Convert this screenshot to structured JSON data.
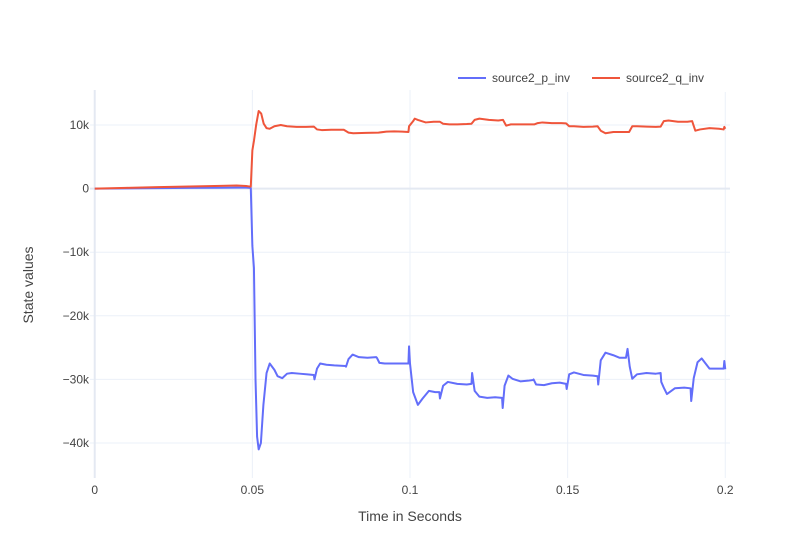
{
  "chart_data": {
    "type": "line",
    "xlabel": "Time in Seconds",
    "ylabel": "State values",
    "xlim": [
      -0.0015,
      0.2015
    ],
    "ylim": [
      -45500,
      15500
    ],
    "x_ticks": [
      0,
      0.05,
      0.1,
      0.15,
      0.2
    ],
    "x_tick_labels": [
      "0",
      "0.05",
      "0.1",
      "0.15",
      "0.2"
    ],
    "y_ticks": [
      10000,
      0,
      -10000,
      -20000,
      -30000,
      -40000
    ],
    "y_tick_labels": [
      "10k",
      "0",
      "−10k",
      "−20k",
      "−30k",
      "−40k"
    ],
    "grid": true,
    "legend_position": "top-right",
    "series": [
      {
        "name": "source2_p_inv",
        "color": "#636efa",
        "points": [
          [
            0,
            0
          ],
          [
            0.01,
            40
          ],
          [
            0.02,
            80
          ],
          [
            0.03,
            120
          ],
          [
            0.04,
            140
          ],
          [
            0.045,
            160
          ],
          [
            0.048,
            150
          ],
          [
            0.0495,
            120
          ],
          [
            0.05,
            -9000
          ],
          [
            0.0505,
            -12500
          ],
          [
            0.051,
            -30000
          ],
          [
            0.0515,
            -39000
          ],
          [
            0.052,
            -41000
          ],
          [
            0.0527,
            -40000
          ],
          [
            0.0535,
            -34000
          ],
          [
            0.0545,
            -29000
          ],
          [
            0.0555,
            -27500
          ],
          [
            0.057,
            -28500
          ],
          [
            0.058,
            -29500
          ],
          [
            0.0595,
            -29800
          ],
          [
            0.061,
            -29100
          ],
          [
            0.0625,
            -29000
          ],
          [
            0.065,
            -29100
          ],
          [
            0.0675,
            -29200
          ],
          [
            0.0695,
            -29300
          ],
          [
            0.0697,
            -30000
          ],
          [
            0.0705,
            -28300
          ],
          [
            0.0715,
            -27500
          ],
          [
            0.0735,
            -27700
          ],
          [
            0.076,
            -27800
          ],
          [
            0.0795,
            -27900
          ],
          [
            0.0797,
            -28000
          ],
          [
            0.0805,
            -26800
          ],
          [
            0.0818,
            -26100
          ],
          [
            0.0838,
            -26500
          ],
          [
            0.0865,
            -26600
          ],
          [
            0.0893,
            -26500
          ],
          [
            0.0895,
            -26600
          ],
          [
            0.0903,
            -27400
          ],
          [
            0.092,
            -27500
          ],
          [
            0.095,
            -27500
          ],
          [
            0.0975,
            -27500
          ],
          [
            0.0995,
            -27500
          ],
          [
            0.0997,
            -24800
          ],
          [
            0.1,
            -27500
          ],
          [
            0.101,
            -32000
          ],
          [
            0.1025,
            -34000
          ],
          [
            0.104,
            -33000
          ],
          [
            0.106,
            -31800
          ],
          [
            0.108,
            -32000
          ],
          [
            0.1093,
            -32000
          ],
          [
            0.1095,
            -33000
          ],
          [
            0.1105,
            -31000
          ],
          [
            0.112,
            -30400
          ],
          [
            0.115,
            -30700
          ],
          [
            0.118,
            -30800
          ],
          [
            0.1195,
            -30700
          ],
          [
            0.1197,
            -29000
          ],
          [
            0.1205,
            -31800
          ],
          [
            0.122,
            -32700
          ],
          [
            0.1245,
            -32900
          ],
          [
            0.127,
            -32800
          ],
          [
            0.1292,
            -32900
          ],
          [
            0.1294,
            -34500
          ],
          [
            0.13,
            -31000
          ],
          [
            0.1312,
            -29400
          ],
          [
            0.1325,
            -29900
          ],
          [
            0.135,
            -30300
          ],
          [
            0.1375,
            -30200
          ],
          [
            0.139,
            -30100
          ],
          [
            0.1392,
            -30000
          ],
          [
            0.14,
            -30800
          ],
          [
            0.1425,
            -30900
          ],
          [
            0.145,
            -30600
          ],
          [
            0.1475,
            -30500
          ],
          [
            0.1495,
            -30700
          ],
          [
            0.1497,
            -31500
          ],
          [
            0.1505,
            -29200
          ],
          [
            0.152,
            -28900
          ],
          [
            0.155,
            -29300
          ],
          [
            0.158,
            -29400
          ],
          [
            0.1595,
            -29500
          ],
          [
            0.1597,
            -30800
          ],
          [
            0.1605,
            -27000
          ],
          [
            0.162,
            -25800
          ],
          [
            0.1645,
            -26200
          ],
          [
            0.1665,
            -26600
          ],
          [
            0.1685,
            -26600
          ],
          [
            0.169,
            -25200
          ],
          [
            0.1697,
            -28000
          ],
          [
            0.1705,
            -29900
          ],
          [
            0.172,
            -29200
          ],
          [
            0.175,
            -29000
          ],
          [
            0.178,
            -29100
          ],
          [
            0.1795,
            -29000
          ],
          [
            0.1797,
            -30400
          ],
          [
            0.1805,
            -31300
          ],
          [
            0.1815,
            -32300
          ],
          [
            0.184,
            -31400
          ],
          [
            0.187,
            -31300
          ],
          [
            0.189,
            -31400
          ],
          [
            0.1892,
            -33400
          ],
          [
            0.19,
            -29800
          ],
          [
            0.1912,
            -27300
          ],
          [
            0.1925,
            -26700
          ],
          [
            0.195,
            -28300
          ],
          [
            0.198,
            -28300
          ],
          [
            0.1995,
            -28300
          ],
          [
            0.1997,
            -27100
          ],
          [
            0.2,
            -28400
          ]
        ]
      },
      {
        "name": "source2_q_inv",
        "color": "#ef553b",
        "points": [
          [
            0,
            0
          ],
          [
            0.01,
            120
          ],
          [
            0.02,
            230
          ],
          [
            0.03,
            330
          ],
          [
            0.04,
            420
          ],
          [
            0.045,
            480
          ],
          [
            0.048,
            400
          ],
          [
            0.0495,
            300
          ],
          [
            0.05,
            6000
          ],
          [
            0.0505,
            7500
          ],
          [
            0.0512,
            10000
          ],
          [
            0.052,
            12200
          ],
          [
            0.0528,
            11800
          ],
          [
            0.0536,
            10200
          ],
          [
            0.0545,
            9500
          ],
          [
            0.0555,
            9400
          ],
          [
            0.057,
            9800
          ],
          [
            0.059,
            10000
          ],
          [
            0.061,
            9800
          ],
          [
            0.064,
            9700
          ],
          [
            0.067,
            9700
          ],
          [
            0.0695,
            9750
          ],
          [
            0.0705,
            9300
          ],
          [
            0.072,
            9200
          ],
          [
            0.075,
            9250
          ],
          [
            0.079,
            9250
          ],
          [
            0.0805,
            8800
          ],
          [
            0.082,
            8700
          ],
          [
            0.086,
            8750
          ],
          [
            0.09,
            8800
          ],
          [
            0.0925,
            8950
          ],
          [
            0.095,
            9000
          ],
          [
            0.0975,
            8950
          ],
          [
            0.0995,
            8900
          ],
          [
            0.0997,
            9800
          ],
          [
            0.101,
            10600
          ],
          [
            0.1015,
            11000
          ],
          [
            0.1025,
            10800
          ],
          [
            0.105,
            10400
          ],
          [
            0.1075,
            10500
          ],
          [
            0.1095,
            10500
          ],
          [
            0.1105,
            10200
          ],
          [
            0.1125,
            10100
          ],
          [
            0.115,
            10100
          ],
          [
            0.118,
            10150
          ],
          [
            0.1195,
            10200
          ],
          [
            0.1205,
            10800
          ],
          [
            0.122,
            11000
          ],
          [
            0.125,
            10800
          ],
          [
            0.128,
            10700
          ],
          [
            0.1295,
            10800
          ],
          [
            0.1305,
            9900
          ],
          [
            0.132,
            10100
          ],
          [
            0.135,
            10100
          ],
          [
            0.138,
            10100
          ],
          [
            0.1395,
            10100
          ],
          [
            0.1405,
            10300
          ],
          [
            0.142,
            10400
          ],
          [
            0.145,
            10300
          ],
          [
            0.148,
            10300
          ],
          [
            0.1495,
            10250
          ],
          [
            0.1505,
            9800
          ],
          [
            0.152,
            9800
          ],
          [
            0.155,
            9700
          ],
          [
            0.158,
            9750
          ],
          [
            0.1595,
            9800
          ],
          [
            0.1605,
            9100
          ],
          [
            0.162,
            8700
          ],
          [
            0.1645,
            8900
          ],
          [
            0.1675,
            8900
          ],
          [
            0.1695,
            8900
          ],
          [
            0.1705,
            9800
          ],
          [
            0.172,
            9800
          ],
          [
            0.175,
            9750
          ],
          [
            0.178,
            9700
          ],
          [
            0.1795,
            9750
          ],
          [
            0.1805,
            10600
          ],
          [
            0.182,
            10700
          ],
          [
            0.185,
            10500
          ],
          [
            0.188,
            10500
          ],
          [
            0.1895,
            10600
          ],
          [
            0.1905,
            9100
          ],
          [
            0.192,
            9300
          ],
          [
            0.195,
            9500
          ],
          [
            0.198,
            9400
          ],
          [
            0.1995,
            9300
          ],
          [
            0.1997,
            9700
          ],
          [
            0.2,
            9400
          ]
        ]
      }
    ]
  }
}
